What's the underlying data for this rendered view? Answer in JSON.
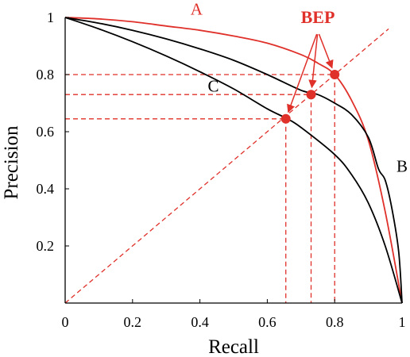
{
  "chart_data": {
    "type": "line",
    "xlabel": "Recall",
    "ylabel": "Precision",
    "xlim": [
      0,
      1
    ],
    "ylim": [
      0,
      1
    ],
    "x_ticks": [
      {
        "value": 0,
        "label": "0"
      },
      {
        "value": 0.2,
        "label": "0.2"
      },
      {
        "value": 0.4,
        "label": "0.4"
      },
      {
        "value": 0.6,
        "label": "0.6"
      },
      {
        "value": 0.8,
        "label": "0.8"
      },
      {
        "value": 1,
        "label": "1"
      }
    ],
    "y_ticks": [
      {
        "value": 0.2,
        "label": "0.2"
      },
      {
        "value": 0.4,
        "label": "0.4"
      },
      {
        "value": 0.6,
        "label": "0.6"
      },
      {
        "value": 0.8,
        "label": "0.8"
      },
      {
        "value": 1,
        "label": "1"
      }
    ],
    "grid": false,
    "legend": "none",
    "series": [
      {
        "name": "A",
        "color": "#e0302a",
        "x": [
          0,
          0.1,
          0.2,
          0.3,
          0.4,
          0.5,
          0.6,
          0.7,
          0.75,
          0.8,
          0.85,
          0.9,
          0.95,
          1.0
        ],
        "y": [
          1.0,
          0.995,
          0.985,
          0.97,
          0.955,
          0.935,
          0.91,
          0.87,
          0.84,
          0.8,
          0.71,
          0.57,
          0.32,
          0.0
        ]
      },
      {
        "name": "B",
        "color": "#000000",
        "x": [
          0,
          0.1,
          0.2,
          0.3,
          0.4,
          0.5,
          0.6,
          0.7,
          0.75,
          0.8,
          0.85,
          0.9,
          0.93,
          0.95,
          0.97,
          0.99,
          1.0
        ],
        "y": [
          1.0,
          0.98,
          0.955,
          0.925,
          0.89,
          0.85,
          0.8,
          0.745,
          0.73,
          0.7,
          0.66,
          0.58,
          0.47,
          0.43,
          0.33,
          0.18,
          0.0
        ]
      },
      {
        "name": "C",
        "color": "#000000",
        "x": [
          0,
          0.1,
          0.2,
          0.3,
          0.4,
          0.5,
          0.6,
          0.66,
          0.7,
          0.8,
          0.85,
          0.9,
          0.95,
          1.0
        ],
        "y": [
          1.0,
          0.96,
          0.915,
          0.865,
          0.81,
          0.75,
          0.68,
          0.645,
          0.615,
          0.52,
          0.45,
          0.35,
          0.2,
          0.0
        ]
      }
    ],
    "reference_line": {
      "color": "#e0302a",
      "style": "dashed",
      "x": [
        0,
        0.96
      ],
      "y": [
        0,
        0.96
      ]
    },
    "bep_points": [
      {
        "series": "A",
        "x": 0.8,
        "y": 0.8
      },
      {
        "series": "B",
        "x": 0.73,
        "y": 0.73
      },
      {
        "series": "C",
        "x": 0.655,
        "y": 0.645
      }
    ],
    "annotations": [
      {
        "text": "A",
        "color": "#e0302a",
        "x": 0.39,
        "y": 1.01
      },
      {
        "text": "B",
        "color": "#000000",
        "x": 1.0,
        "y": 0.46
      },
      {
        "text": "C",
        "color": "#000000",
        "x": 0.44,
        "y": 0.74
      },
      {
        "text": "BEP",
        "color": "#e0302a",
        "x": 0.75,
        "y": 0.98,
        "bold": true
      }
    ]
  }
}
